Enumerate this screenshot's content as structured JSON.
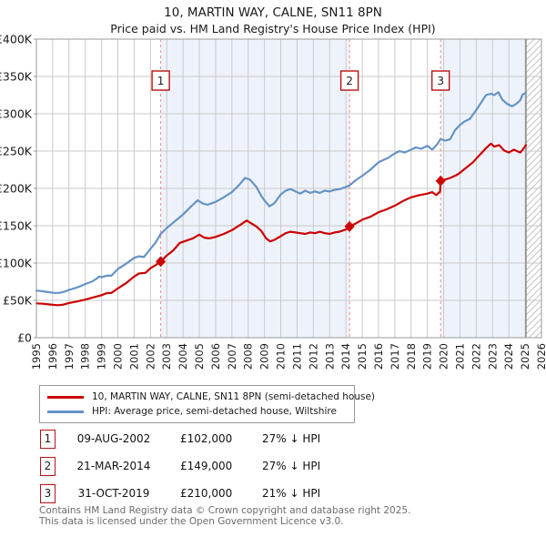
{
  "header": {
    "title": "10, MARTIN WAY, CALNE, SN11 8PN",
    "subtitle": "Price paid vs. HM Land Registry's House Price Index (HPI)"
  },
  "chart_data": {
    "type": "line",
    "title": "10, MARTIN WAY, CALNE, SN11 8PN",
    "subtitle": "Price paid vs. HM Land Registry's House Price Index (HPI)",
    "x_axis": {
      "min": 1995,
      "max": 2026,
      "tick_labels": [
        "1995",
        "1996",
        "1997",
        "1998",
        "1999",
        "2000",
        "2001",
        "2002",
        "2003",
        "2004",
        "2005",
        "2006",
        "2007",
        "2008",
        "2009",
        "2010",
        "2011",
        "2012",
        "2013",
        "2014",
        "2015",
        "2016",
        "2017",
        "2018",
        "2019",
        "2020",
        "2021",
        "2022",
        "2023",
        "2024",
        "2025",
        "2026"
      ]
    },
    "y_axis": {
      "min": 0,
      "max": 400,
      "unit": "GBP thousands",
      "ticks": [
        {
          "v": 0,
          "label": "£0"
        },
        {
          "v": 50,
          "label": "£50K"
        },
        {
          "v": 100,
          "label": "£100K"
        },
        {
          "v": 150,
          "label": "£150K"
        },
        {
          "v": 200,
          "label": "£200K"
        },
        {
          "v": 250,
          "label": "£250K"
        },
        {
          "v": 300,
          "label": "£300K"
        },
        {
          "v": 350,
          "label": "£350K"
        },
        {
          "v": 400,
          "label": "£400K"
        }
      ]
    },
    "grid": true,
    "legend_position": "below",
    "shaded_ownership_bands": [
      [
        2002.63,
        2014.22
      ],
      [
        2019.81,
        2025.05
      ]
    ],
    "future_hatch_band": [
      2025.05,
      2026
    ],
    "colors": {
      "property_line": "#cc0000",
      "hpi_line": "#6593c5",
      "band_fill": "#eef3fb",
      "gridline": "#c9c9c9",
      "plot_border": "#999999",
      "dashed_marker_line": "#ef8a8a",
      "marker_box_border": "#bb1111",
      "hatch_line": "#c4c4c4",
      "hatch_edge": "#8a8a8a"
    },
    "series": [
      {
        "name": "10, MARTIN WAY, CALNE, SN11 8PN (semi-detached house)",
        "color": "#cc0000",
        "points": [
          [
            1995,
            46
          ],
          [
            1995.4,
            45.5
          ],
          [
            1995.8,
            44.5
          ],
          [
            1996,
            44
          ],
          [
            1996.3,
            43.5
          ],
          [
            1996.6,
            44
          ],
          [
            1997,
            46.5
          ],
          [
            1997.5,
            48.5
          ],
          [
            1998,
            51
          ],
          [
            1998.5,
            54
          ],
          [
            1999,
            57
          ],
          [
            1999.3,
            59.5
          ],
          [
            1999.6,
            60
          ],
          [
            2000,
            66
          ],
          [
            2000.5,
            73
          ],
          [
            2001,
            82
          ],
          [
            2001.3,
            86
          ],
          [
            2001.7,
            87
          ],
          [
            2002,
            93
          ],
          [
            2002.3,
            97
          ],
          [
            2002.63,
            102
          ],
          [
            2003,
            110
          ],
          [
            2003.4,
            117
          ],
          [
            2003.8,
            127
          ],
          [
            2004.2,
            130
          ],
          [
            2004.6,
            133
          ],
          [
            2005,
            138
          ],
          [
            2005.3,
            134
          ],
          [
            2005.6,
            133
          ],
          [
            2006,
            135
          ],
          [
            2006.5,
            139
          ],
          [
            2007,
            144
          ],
          [
            2007.5,
            151
          ],
          [
            2007.9,
            157
          ],
          [
            2008.2,
            153
          ],
          [
            2008.5,
            149
          ],
          [
            2008.8,
            143
          ],
          [
            2009.1,
            133
          ],
          [
            2009.35,
            129
          ],
          [
            2009.6,
            131
          ],
          [
            2010,
            136
          ],
          [
            2010.3,
            140
          ],
          [
            2010.6,
            142
          ],
          [
            2010.9,
            141
          ],
          [
            2011.2,
            140
          ],
          [
            2011.5,
            139
          ],
          [
            2011.8,
            141
          ],
          [
            2012.1,
            140
          ],
          [
            2012.4,
            142
          ],
          [
            2012.7,
            140
          ],
          [
            2013,
            139
          ],
          [
            2013.3,
            141
          ],
          [
            2013.6,
            142
          ],
          [
            2014,
            145
          ],
          [
            2014.22,
            149
          ],
          [
            2014.6,
            153
          ],
          [
            2015,
            158
          ],
          [
            2015.5,
            162
          ],
          [
            2016,
            168
          ],
          [
            2016.5,
            172
          ],
          [
            2017,
            177
          ],
          [
            2017.5,
            183
          ],
          [
            2018,
            188
          ],
          [
            2018.5,
            191
          ],
          [
            2019,
            193
          ],
          [
            2019.3,
            195
          ],
          [
            2019.55,
            191
          ],
          [
            2019.78,
            196
          ],
          [
            2019.81,
            210
          ],
          [
            2020.1,
            212
          ],
          [
            2020.4,
            214
          ],
          [
            2020.8,
            218
          ],
          [
            2021,
            221
          ],
          [
            2021.4,
            228
          ],
          [
            2021.8,
            235
          ],
          [
            2022,
            240
          ],
          [
            2022.3,
            247
          ],
          [
            2022.6,
            254
          ],
          [
            2022.9,
            260
          ],
          [
            2023.1,
            256
          ],
          [
            2023.4,
            258
          ],
          [
            2023.7,
            251
          ],
          [
            2024,
            248
          ],
          [
            2024.3,
            252
          ],
          [
            2024.7,
            248
          ],
          [
            2024.85,
            252
          ],
          [
            2025.05,
            258
          ]
        ]
      },
      {
        "name": "HPI: Average price, semi-detached house, Wiltshire",
        "color": "#6593c5",
        "points": [
          [
            1995,
            63
          ],
          [
            1995.3,
            62.5
          ],
          [
            1995.6,
            61.5
          ],
          [
            1995.9,
            60.5
          ],
          [
            1996.1,
            60
          ],
          [
            1996.4,
            60
          ],
          [
            1996.7,
            61.5
          ],
          [
            1997,
            64
          ],
          [
            1997.3,
            66
          ],
          [
            1997.6,
            68
          ],
          [
            1998,
            72
          ],
          [
            1998.4,
            75
          ],
          [
            1998.7,
            79
          ],
          [
            1998.85,
            82
          ],
          [
            1999,
            81
          ],
          [
            1999.3,
            83
          ],
          [
            1999.6,
            83
          ],
          [
            2000,
            92
          ],
          [
            2000.5,
            99
          ],
          [
            2001,
            107
          ],
          [
            2001.3,
            109
          ],
          [
            2001.6,
            108
          ],
          [
            2002,
            119
          ],
          [
            2002.3,
            127
          ],
          [
            2002.63,
            139
          ],
          [
            2003,
            147
          ],
          [
            2003.5,
            156
          ],
          [
            2004,
            165
          ],
          [
            2004.5,
            176
          ],
          [
            2004.9,
            184
          ],
          [
            2005.2,
            180
          ],
          [
            2005.5,
            178
          ],
          [
            2006,
            182
          ],
          [
            2006.5,
            188
          ],
          [
            2007,
            195
          ],
          [
            2007.5,
            206
          ],
          [
            2007.8,
            214
          ],
          [
            2008.1,
            212
          ],
          [
            2008.5,
            202
          ],
          [
            2008.8,
            190
          ],
          [
            2009,
            184
          ],
          [
            2009.3,
            176
          ],
          [
            2009.6,
            180
          ],
          [
            2010,
            192
          ],
          [
            2010.3,
            197
          ],
          [
            2010.6,
            199
          ],
          [
            2010.9,
            196
          ],
          [
            2011.2,
            193
          ],
          [
            2011.5,
            197
          ],
          [
            2011.8,
            194
          ],
          [
            2012.1,
            196
          ],
          [
            2012.4,
            194
          ],
          [
            2012.7,
            197
          ],
          [
            2013,
            196
          ],
          [
            2013.3,
            198
          ],
          [
            2013.6,
            199
          ],
          [
            2014,
            202
          ],
          [
            2014.22,
            204
          ],
          [
            2014.6,
            211
          ],
          [
            2015,
            217
          ],
          [
            2015.5,
            225
          ],
          [
            2016,
            235
          ],
          [
            2016.3,
            238
          ],
          [
            2016.6,
            241
          ],
          [
            2017,
            247
          ],
          [
            2017.3,
            250
          ],
          [
            2017.6,
            248
          ],
          [
            2018,
            252
          ],
          [
            2018.3,
            255
          ],
          [
            2018.6,
            253
          ],
          [
            2019,
            257
          ],
          [
            2019.3,
            252
          ],
          [
            2019.6,
            259
          ],
          [
            2019.8,
            266
          ],
          [
            2020.1,
            264
          ],
          [
            2020.4,
            266
          ],
          [
            2020.7,
            278
          ],
          [
            2021,
            285
          ],
          [
            2021.3,
            290
          ],
          [
            2021.6,
            293
          ],
          [
            2022,
            305
          ],
          [
            2022.3,
            315
          ],
          [
            2022.6,
            325
          ],
          [
            2022.9,
            327
          ],
          [
            2023.1,
            325
          ],
          [
            2023.35,
            329
          ],
          [
            2023.6,
            319
          ],
          [
            2023.9,
            313
          ],
          [
            2024.2,
            310
          ],
          [
            2024.5,
            314
          ],
          [
            2024.7,
            318
          ],
          [
            2024.85,
            326
          ],
          [
            2025.05,
            328
          ]
        ]
      }
    ],
    "sale_markers": [
      {
        "label": "1",
        "year": 2002.63,
        "value": 102
      },
      {
        "label": "2",
        "year": 2014.22,
        "value": 149
      },
      {
        "label": "3",
        "year": 2019.81,
        "value": 210
      }
    ]
  },
  "legend": {
    "items": [
      {
        "label": "10, MARTIN WAY, CALNE, SN11 8PN (semi-detached house)",
        "color": "#cc0000"
      },
      {
        "label": "HPI: Average price, semi-detached house, Wiltshire",
        "color": "#6593c5"
      }
    ]
  },
  "transactions": [
    {
      "num": "1",
      "date": "09-AUG-2002",
      "price": "£102,000",
      "hpi_diff": "27% ↓ HPI"
    },
    {
      "num": "2",
      "date": "21-MAR-2014",
      "price": "£149,000",
      "hpi_diff": "27% ↓ HPI"
    },
    {
      "num": "3",
      "date": "31-OCT-2019",
      "price": "£210,000",
      "hpi_diff": "21% ↓ HPI"
    }
  ],
  "footer": {
    "line1": "Contains HM Land Registry data © Crown copyright and database right 2025.",
    "line2": "This data is licensed under the Open Government Licence v3.0."
  }
}
